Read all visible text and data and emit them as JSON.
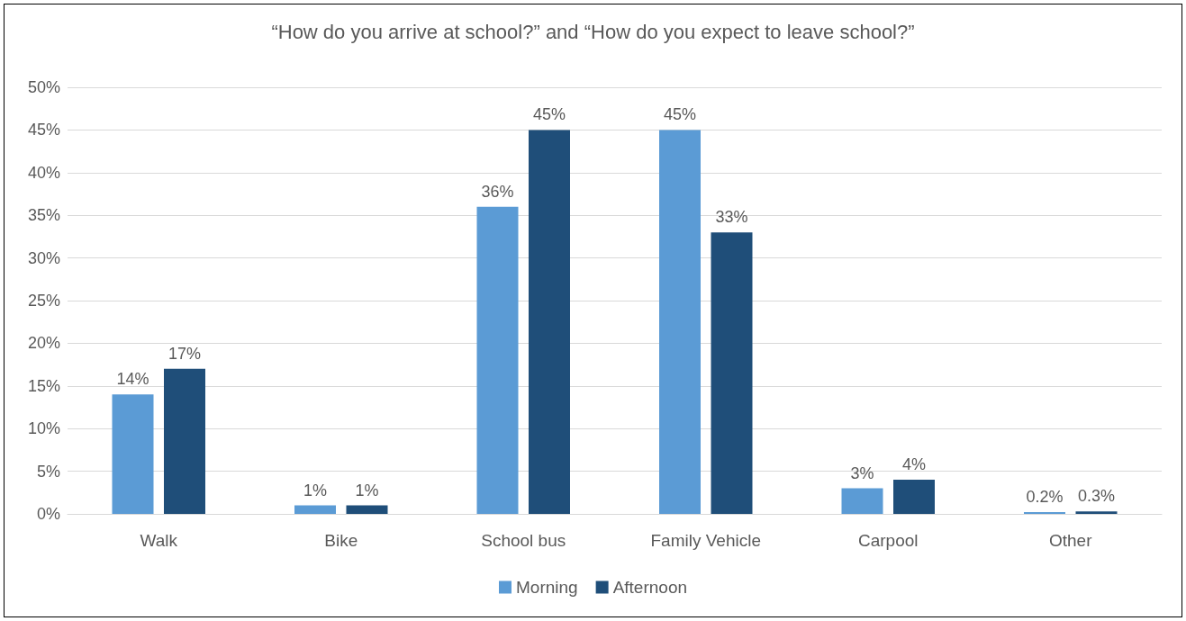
{
  "chart_data": {
    "type": "bar",
    "title": "“How do you arrive at school?” and “How do you expect to leave school?”",
    "categories": [
      "Walk",
      "Bike",
      "School bus",
      "Family Vehicle",
      "Carpool",
      "Other"
    ],
    "series": [
      {
        "name": "Morning",
        "color": "#5b9bd5",
        "values": [
          14,
          1,
          36,
          45,
          3,
          0.2
        ],
        "value_labels": [
          "14%",
          "1%",
          "36%",
          "45%",
          "3%",
          "0.2%"
        ]
      },
      {
        "name": "Afternoon",
        "color": "#1f4e79",
        "values": [
          17,
          1,
          45,
          33,
          4,
          0.3
        ],
        "value_labels": [
          "17%",
          "1%",
          "45%",
          "33%",
          "4%",
          "0.3%"
        ]
      }
    ],
    "ylim": [
      0,
      50
    ],
    "yticks": [
      {
        "value": 0,
        "label": "0%"
      },
      {
        "value": 5,
        "label": "5%"
      },
      {
        "value": 10,
        "label": "10%"
      },
      {
        "value": 15,
        "label": "15%"
      },
      {
        "value": 20,
        "label": "20%"
      },
      {
        "value": 25,
        "label": "25%"
      },
      {
        "value": 30,
        "label": "30%"
      },
      {
        "value": 35,
        "label": "35%"
      },
      {
        "value": 40,
        "label": "40%"
      },
      {
        "value": 45,
        "label": "45%"
      },
      {
        "value": 50,
        "label": "50%"
      }
    ],
    "grid": "y",
    "legend": "bottom"
  }
}
